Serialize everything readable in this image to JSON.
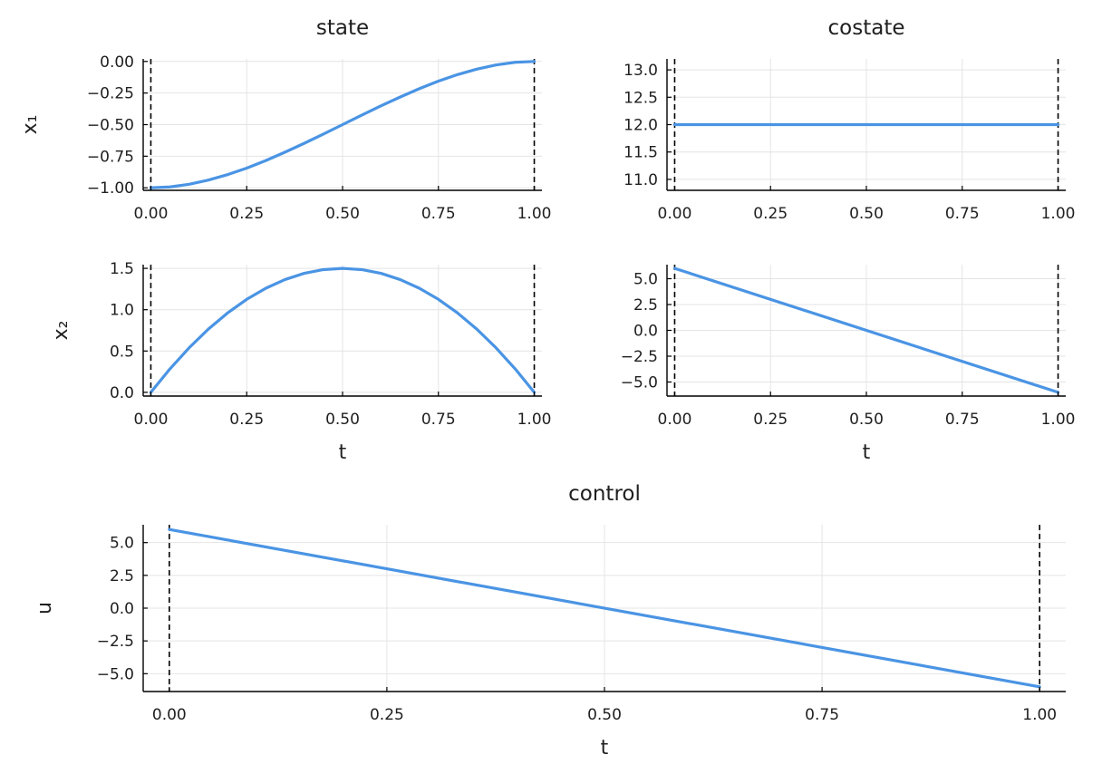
{
  "colors": {
    "series": "#4a94e4",
    "axis": "#000000",
    "grid": "#e4e4e4",
    "text": "#1f1f1f"
  },
  "chart_data": [
    {
      "id": "x1",
      "type": "line",
      "title": "state",
      "xlabel": "",
      "ylabel": "x₁",
      "xlim": [
        -0.02,
        1.02
      ],
      "ylim": [
        -1.02,
        0.02
      ],
      "xticks": [
        0,
        0.25,
        0.5,
        0.75,
        1
      ],
      "xtick_labels": [
        "0.00",
        "0.25",
        "0.50",
        "0.75",
        "1.00"
      ],
      "yticks": [
        0,
        -0.25,
        -0.5,
        -0.75,
        -1
      ],
      "ytick_labels": [
        "0.00",
        "−0.25",
        "−0.50",
        "−0.75",
        "−1.00"
      ],
      "vlines": [
        0,
        1
      ],
      "grid": true,
      "x": [
        0,
        0.05,
        0.1,
        0.15,
        0.2,
        0.25,
        0.3,
        0.35,
        0.4,
        0.45,
        0.5,
        0.55,
        0.6,
        0.65,
        0.7,
        0.75,
        0.8,
        0.85,
        0.9,
        0.95,
        1
      ],
      "series": [
        {
          "values": [
            -1,
            -0.993,
            -0.972,
            -0.939,
            -0.896,
            -0.844,
            -0.784,
            -0.718,
            -0.648,
            -0.575,
            -0.5,
            -0.425,
            -0.352,
            -0.282,
            -0.216,
            -0.156,
            -0.104,
            -0.061,
            -0.028,
            -0.007,
            0
          ]
        }
      ]
    },
    {
      "id": "lambda1",
      "type": "line",
      "title": "costate",
      "xlabel": "",
      "ylabel": "",
      "xlim": [
        -0.02,
        1.02
      ],
      "ylim": [
        10.8,
        13.2
      ],
      "xticks": [
        0,
        0.25,
        0.5,
        0.75,
        1
      ],
      "xtick_labels": [
        "0.00",
        "0.25",
        "0.50",
        "0.75",
        "1.00"
      ],
      "yticks": [
        13,
        12.5,
        12,
        11.5,
        11
      ],
      "ytick_labels": [
        "13.0",
        "12.5",
        "12.0",
        "11.5",
        "11.0"
      ],
      "vlines": [
        0,
        1
      ],
      "grid": true,
      "x": [
        0,
        1
      ],
      "series": [
        {
          "values": [
            12,
            12
          ]
        }
      ]
    },
    {
      "id": "x2",
      "type": "line",
      "title": "",
      "xlabel": "t",
      "ylabel": "x₂",
      "xlim": [
        -0.02,
        1.02
      ],
      "ylim": [
        -0.045,
        1.545
      ],
      "xticks": [
        0,
        0.25,
        0.5,
        0.75,
        1
      ],
      "xtick_labels": [
        "0.00",
        "0.25",
        "0.50",
        "0.75",
        "1.00"
      ],
      "yticks": [
        1.5,
        1,
        0.5,
        0
      ],
      "ytick_labels": [
        "1.5",
        "1.0",
        "0.5",
        "0.0"
      ],
      "vlines": [
        0,
        1
      ],
      "grid": true,
      "x": [
        0,
        0.05,
        0.1,
        0.15,
        0.2,
        0.25,
        0.3,
        0.35,
        0.4,
        0.45,
        0.5,
        0.55,
        0.6,
        0.65,
        0.7,
        0.75,
        0.8,
        0.85,
        0.9,
        0.95,
        1
      ],
      "series": [
        {
          "values": [
            0,
            0.285,
            0.54,
            0.765,
            0.96,
            1.125,
            1.26,
            1.365,
            1.44,
            1.485,
            1.5,
            1.485,
            1.44,
            1.365,
            1.26,
            1.125,
            0.96,
            0.765,
            0.54,
            0.285,
            0
          ]
        }
      ]
    },
    {
      "id": "lambda2",
      "type": "line",
      "title": "",
      "xlabel": "t",
      "ylabel": "",
      "xlim": [
        -0.02,
        1.02
      ],
      "ylim": [
        -6.36,
        6.36
      ],
      "xticks": [
        0,
        0.25,
        0.5,
        0.75,
        1
      ],
      "xtick_labels": [
        "0.00",
        "0.25",
        "0.50",
        "0.75",
        "1.00"
      ],
      "yticks": [
        5,
        2.5,
        0,
        -2.5,
        -5
      ],
      "ytick_labels": [
        "5.0",
        "2.5",
        "0.0",
        "−2.5",
        "−5.0"
      ],
      "vlines": [
        0,
        1
      ],
      "grid": true,
      "x": [
        0,
        1
      ],
      "series": [
        {
          "values": [
            6,
            -6
          ]
        }
      ]
    },
    {
      "id": "u",
      "type": "line",
      "title": "control",
      "xlabel": "t",
      "ylabel": "u",
      "xlim": [
        -0.03,
        1.03
      ],
      "ylim": [
        -6.36,
        6.36
      ],
      "xticks": [
        0,
        0.25,
        0.5,
        0.75,
        1
      ],
      "xtick_labels": [
        "0.00",
        "0.25",
        "0.50",
        "0.75",
        "1.00"
      ],
      "yticks": [
        5,
        2.5,
        0,
        -2.5,
        -5
      ],
      "ytick_labels": [
        "5.0",
        "2.5",
        "0.0",
        "−2.5",
        "−5.0"
      ],
      "vlines": [
        0,
        1
      ],
      "grid": true,
      "x": [
        0,
        1
      ],
      "series": [
        {
          "values": [
            6,
            -6
          ]
        }
      ]
    }
  ]
}
